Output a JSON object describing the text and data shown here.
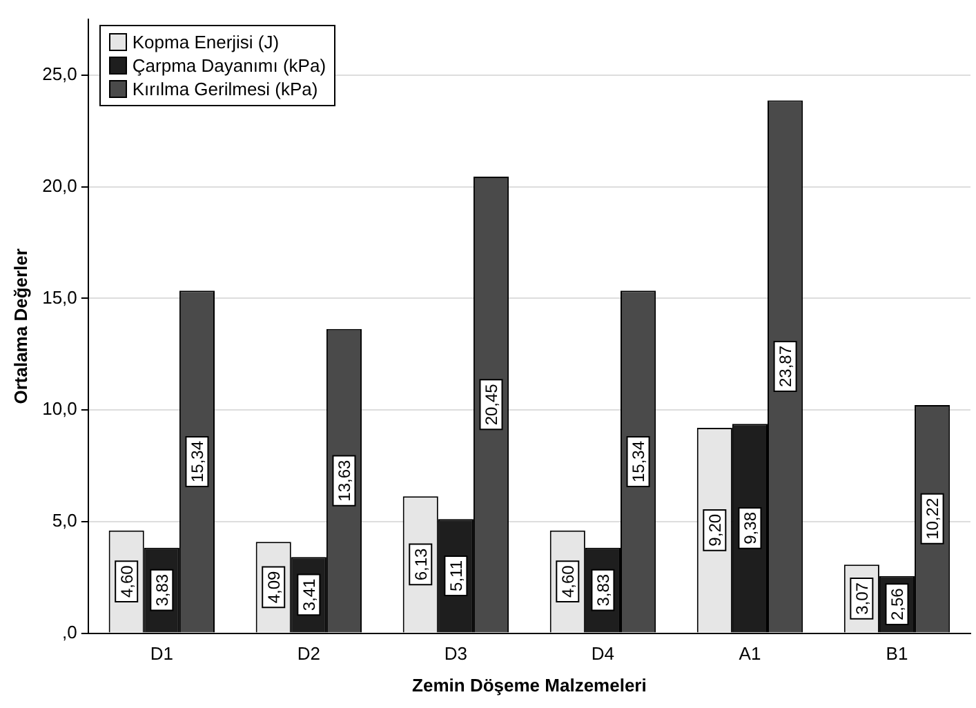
{
  "chart_data": {
    "type": "bar",
    "xlabel": "Zemin Döşeme Malzemeleri",
    "ylabel": "Ortalama Değerler",
    "categories": [
      "D1",
      "D2",
      "D3",
      "D4",
      "A1",
      "B1"
    ],
    "series": [
      {
        "name": "Kopma Enerjisi (J)",
        "color": "#e6e6e6",
        "values": [
          4.6,
          4.09,
          6.13,
          4.6,
          9.2,
          3.07
        ],
        "value_labels": [
          "4,60",
          "4,09",
          "6,13",
          "4,60",
          "9,20",
          "3,07"
        ]
      },
      {
        "name": "Çarpma Dayanımı (kPa)",
        "color": "#1e1e1e",
        "values": [
          3.83,
          3.41,
          5.11,
          3.83,
          9.38,
          2.56
        ],
        "value_labels": [
          "3,83",
          "3,41",
          "5,11",
          "3,83",
          "9,38",
          "2,56"
        ]
      },
      {
        "name": "Kırılma Gerilmesi (kPa)",
        "color": "#4a4a4a",
        "values": [
          15.34,
          13.63,
          20.45,
          15.34,
          23.87,
          10.22
        ],
        "value_labels": [
          "15,34",
          "13,63",
          "20,45",
          "15,34",
          "23,87",
          "10,22"
        ]
      }
    ],
    "ylim": [
      0,
      27.5
    ],
    "yticks": [
      {
        "value": 0,
        "label": ",0"
      },
      {
        "value": 5,
        "label": "5,0"
      },
      {
        "value": 10,
        "label": "10,0"
      },
      {
        "value": 15,
        "label": "15,0"
      },
      {
        "value": 20,
        "label": "20,0"
      },
      {
        "value": 25,
        "label": "25,0"
      }
    ],
    "grid": "y",
    "legend": "top left"
  }
}
